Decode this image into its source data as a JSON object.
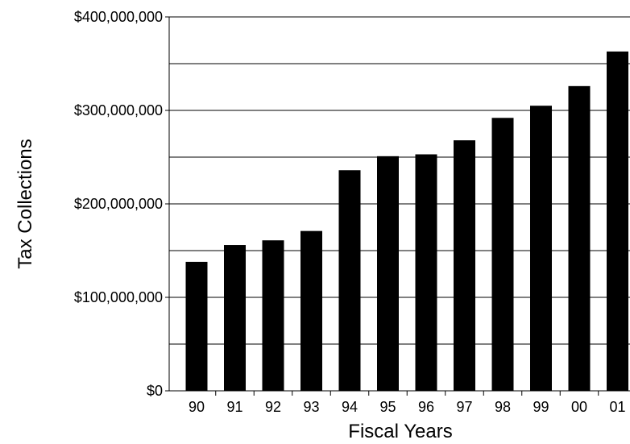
{
  "chart_data": {
    "type": "bar",
    "title": "",
    "xlabel": "Fiscal Years",
    "ylabel": "Tax Collections",
    "categories": [
      "90",
      "91",
      "92",
      "93",
      "94",
      "95",
      "96",
      "97",
      "98",
      "99",
      "00",
      "01"
    ],
    "values": [
      138000000,
      156000000,
      161000000,
      171000000,
      236000000,
      251000000,
      253000000,
      268000000,
      292000000,
      305000000,
      326000000,
      363000000
    ],
    "ylim": [
      0,
      400000000
    ],
    "y_ticks": [
      0,
      100000000,
      200000000,
      300000000,
      400000000
    ],
    "y_tick_labels": [
      "$0",
      "$100,000,000",
      "$200,000,000",
      "$300,000,000",
      "$400,000,000"
    ],
    "gridlines_every": 50000000,
    "grid": true,
    "legend": "none",
    "bar_color": "#000000",
    "grid_color": "#000000"
  }
}
